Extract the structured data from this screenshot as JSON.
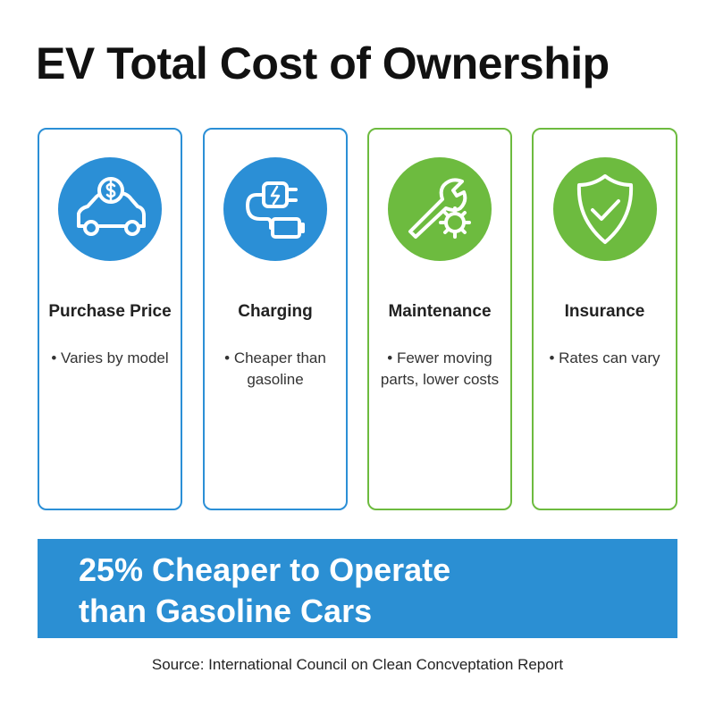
{
  "title": "EV Total Cost of Ownership",
  "cards": [
    {
      "title": "Purchase Price",
      "text": "• Varies by model",
      "color": "#2b8fd6"
    },
    {
      "title": "Charging",
      "text": "• Cheaper than gasoline",
      "color": "#2b8fd6"
    },
    {
      "title": "Maintenance",
      "text": "• Fewer moving parts, lower costs",
      "color": "#6dbb3f"
    },
    {
      "title": "Insurance",
      "text": "• Rates can vary",
      "color": "#6dbb3f"
    }
  ],
  "banner": {
    "lines": [
      "25% Cheaper to Operate",
      "than Gasoline Cars"
    ],
    "color": "#2b8fd3"
  },
  "source": "Source: International Council on Clean Concveptation Report"
}
